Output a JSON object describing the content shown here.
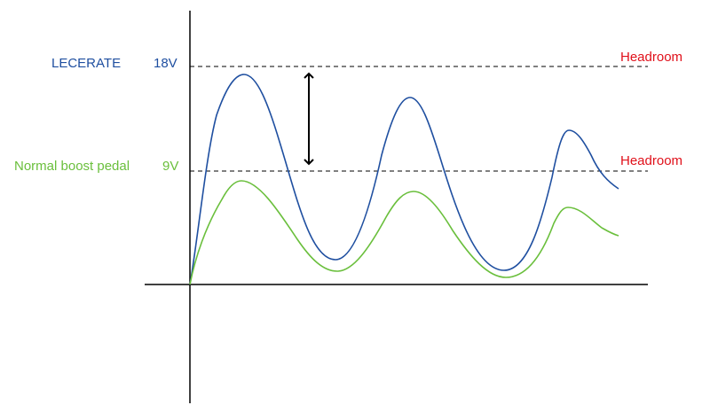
{
  "labels": {
    "lecerate_name": "LECERATE",
    "lecerate_voltage": "18V",
    "normal_name": "Normal boost pedal",
    "normal_voltage": "9V",
    "headroom_top": "Headroom",
    "headroom_bottom": "Headroom"
  },
  "colors": {
    "lecerate": "#1f4fa0",
    "normal": "#6abf3c",
    "headroom": "#e0101a",
    "axis": "#000000",
    "arrow": "#000000"
  }
}
